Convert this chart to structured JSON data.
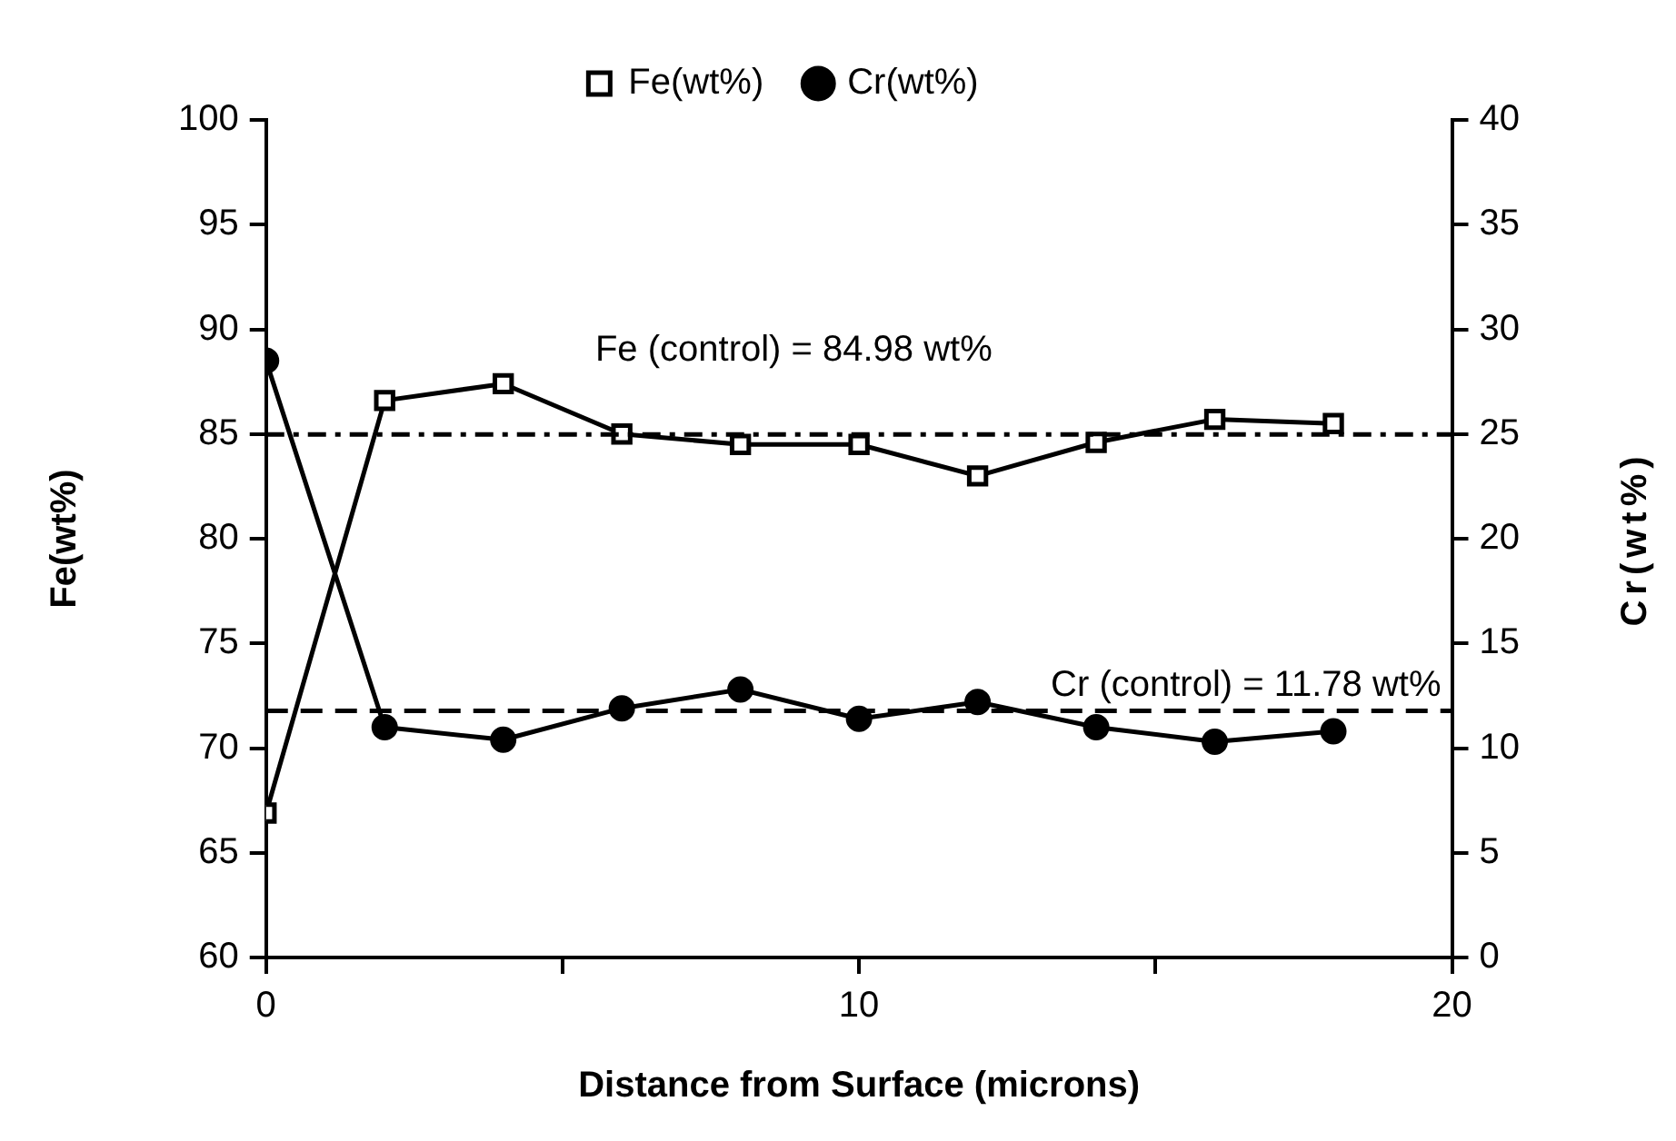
{
  "chart_data": {
    "type": "line",
    "xlabel": "Distance from Surface (microns)",
    "ylabel": "Fe(wt%)",
    "y2label": "Cr(wt%)",
    "x": [
      0,
      2,
      4,
      6,
      8,
      10,
      12,
      14,
      16,
      18
    ],
    "series": [
      {
        "name": "Fe(wt%)",
        "color": "#000000",
        "marker": "square",
        "values": [
          66.9,
          86.6,
          87.4,
          85.0,
          84.5,
          84.5,
          83.0,
          84.6,
          85.7,
          85.5
        ]
      },
      {
        "name": "Cr(wt%)",
        "color": "#000000",
        "marker": "circle",
        "axis": "y2",
        "values": [
          28.5,
          11.0,
          10.4,
          11.9,
          12.8,
          11.4,
          12.2,
          11.0,
          10.3,
          10.8
        ]
      }
    ],
    "xlim": [
      0,
      20
    ],
    "xticks": [
      0,
      {
        "value": 5,
        "label": null
      },
      10,
      {
        "value": 15,
        "label": null
      },
      20
    ],
    "ylim": [
      60,
      100
    ],
    "yticks": [
      60,
      65,
      70,
      75,
      80,
      85,
      90,
      95,
      100
    ],
    "y2lim": [
      0,
      40
    ],
    "y2ticks": [
      0,
      5,
      10,
      15,
      20,
      25,
      30,
      35,
      40
    ],
    "ref_lines": [
      {
        "axis": "y",
        "value": 84.98,
        "label": "Fe (control) = 84.98 wt%",
        "line_style": "dashdot"
      },
      {
        "axis": "y2",
        "value": 11.78,
        "label": "Cr (control) = 11.78 wt%",
        "line_style": "dashed"
      }
    ],
    "grid": false,
    "legend": "top",
    "line_style": "solid"
  }
}
